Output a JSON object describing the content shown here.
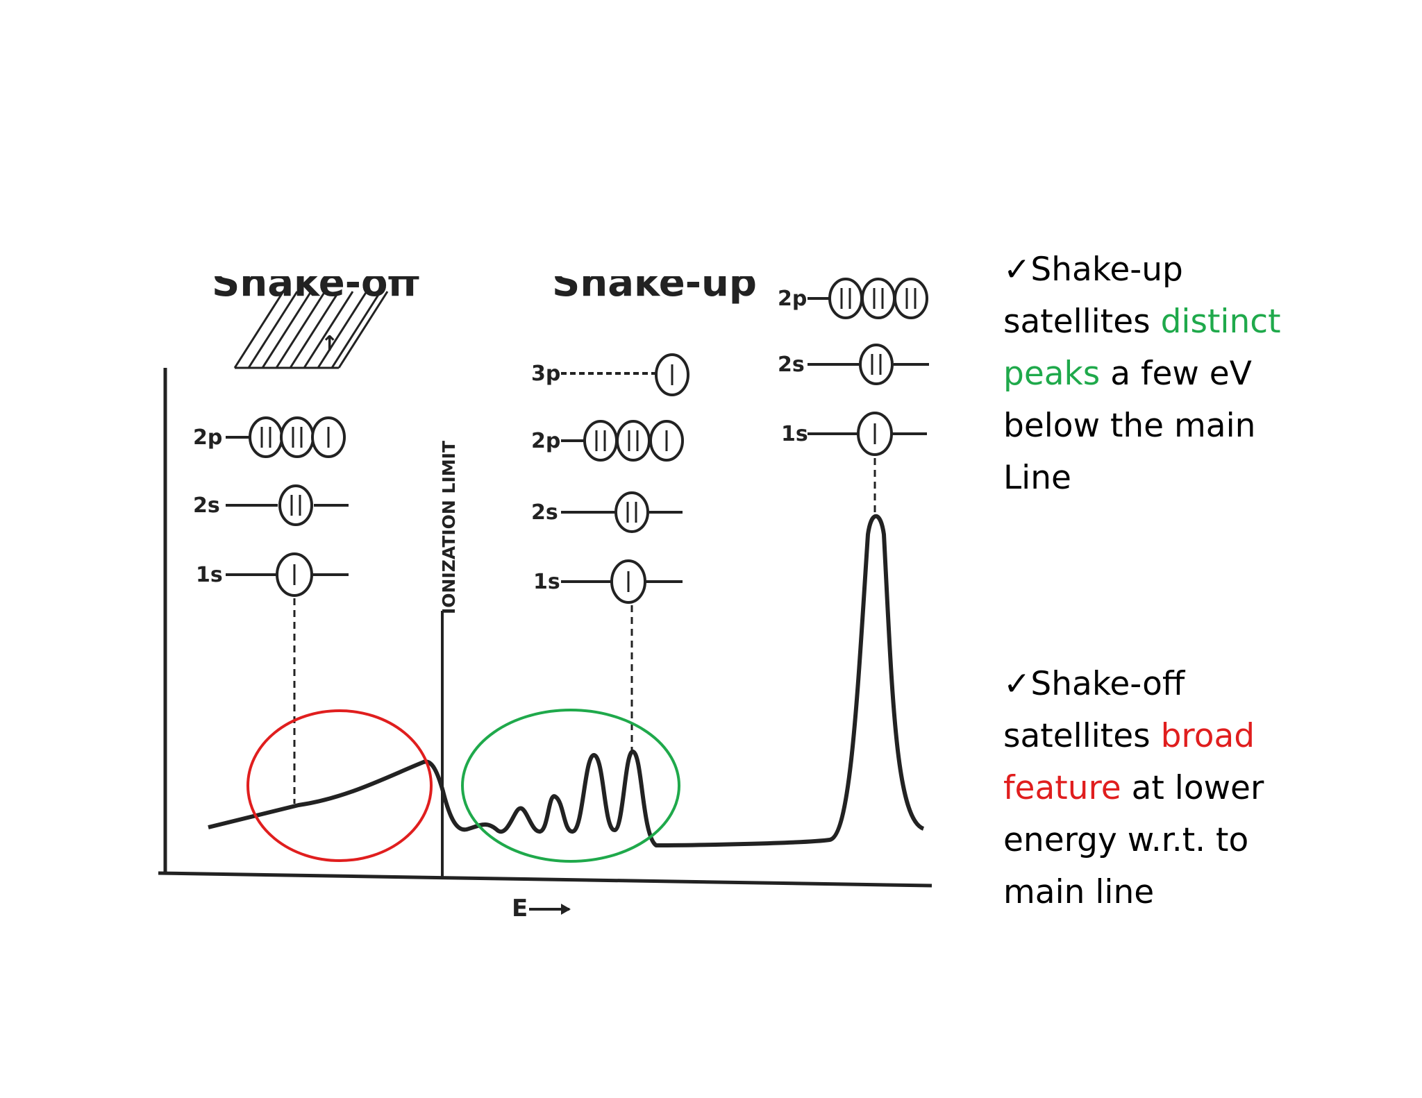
{
  "diagram": {
    "shake_off": {
      "levels": [
        "2p",
        "2s",
        "1s"
      ],
      "header": "Shake-off",
      "electron_mark": "↑"
    },
    "shake_up": {
      "levels": [
        "3p",
        "2p",
        "2s",
        "1s"
      ],
      "header": "Shake-up"
    },
    "main_line": {
      "levels": [
        "2p",
        "2s",
        "1s"
      ]
    },
    "ionization_label": "IONIZATION LIMIT",
    "axis_label": "E",
    "highlight_colors": {
      "shake_off": "#e01e1e",
      "shake_up": "#1fa94b"
    }
  },
  "notes": {
    "check": "✓",
    "shake_up": {
      "l1": "Shake-up",
      "l2a": "satellites ",
      "l2b": "distinct",
      "l3a": "peaks",
      "l3b": " a few eV",
      "l4": "below the main",
      "l5": "Line"
    },
    "shake_off": {
      "l1": "Shake-off",
      "l2a": "satellites ",
      "l2b": "broad",
      "l3a": "feature",
      "l3b": " at lower",
      "l4": "energy w.r.t. to",
      "l5": "main line"
    }
  },
  "colors": {
    "accent_green": "#1fa94b",
    "accent_red": "#e01e1e",
    "ink": "#222222"
  }
}
